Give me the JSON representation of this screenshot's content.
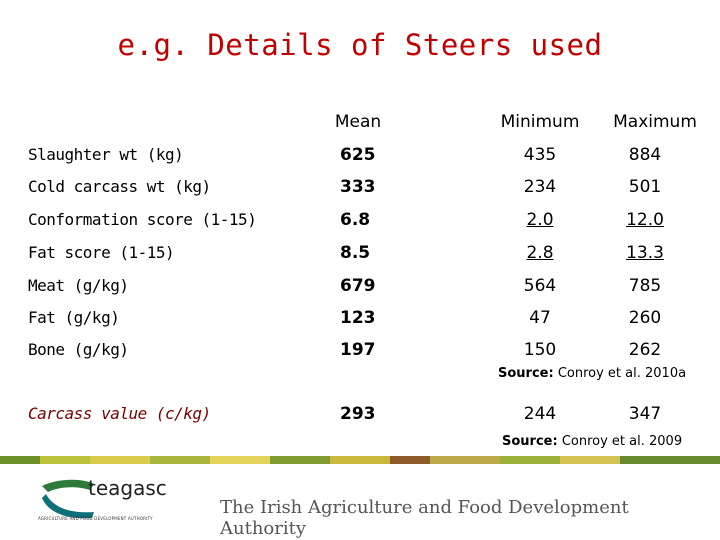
{
  "title": "e.g. Details of Steers used",
  "table": {
    "headers": [
      "Mean",
      "Minimum",
      "Maximum"
    ],
    "rows": [
      {
        "label": "Slaughter wt (kg)",
        "mean": "625",
        "min": "435",
        "max": "884"
      },
      {
        "label": "Cold carcass wt (kg)",
        "mean": "333",
        "min": "234",
        "max": "501"
      },
      {
        "label": "Conformation score (1-15)",
        "mean": "6.8",
        "min": "2.0",
        "max": "12.0"
      },
      {
        "label": "Fat score (1-15)",
        "mean": "8.5",
        "min": "2.8",
        "max": "13.3"
      },
      {
        "label": "Meat (g/kg)",
        "mean": "679",
        "min": "564",
        "max": "785"
      },
      {
        "label": "Fat (g/kg)",
        "mean": "123",
        "min": "47",
        "max": "260"
      },
      {
        "label": "Bone (g/kg)",
        "mean": "197",
        "min": "150",
        "max": "262"
      }
    ],
    "source1": {
      "label": "Source:",
      "text": "Conroy et al. 2010a"
    },
    "carcass_row": {
      "label": "Carcass value (c/kg)",
      "mean": "293",
      "min": "244",
      "max": "347"
    },
    "source2": {
      "label": "Source:",
      "text": "Conroy et al. 2009"
    }
  },
  "footer": {
    "logo_text": "teagasc",
    "logo_subtext": "AGRICULTURE AND FOOD DEVELOPMENT AUTHORITY",
    "authority": "The Irish Agriculture and Food Development Authority",
    "colors": {
      "logo_green": "#2d7a3a",
      "logo_teal": "#0f6f7a"
    }
  }
}
